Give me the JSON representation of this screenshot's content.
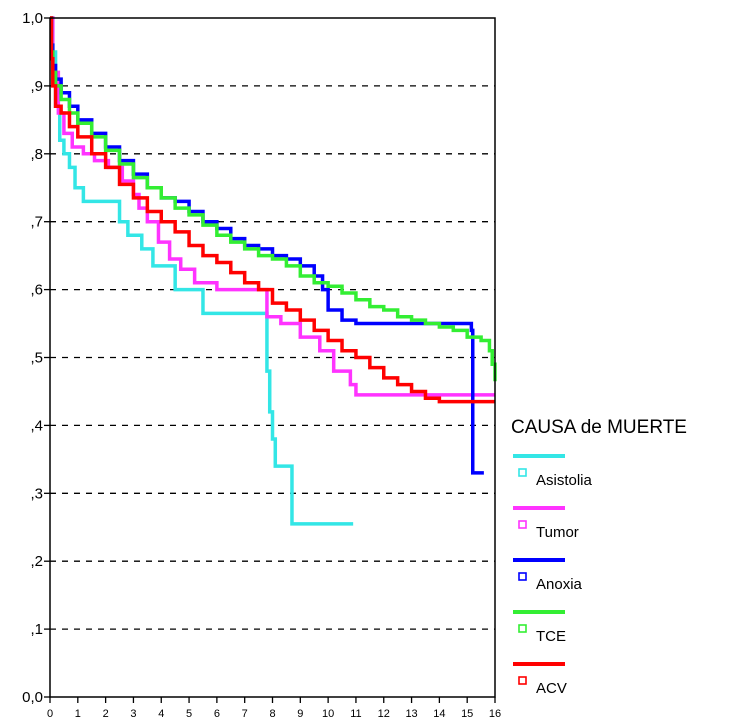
{
  "chart_data": {
    "type": "line",
    "title": "",
    "xlabel": "",
    "ylabel": "",
    "xlim": [
      0,
      16
    ],
    "ylim": [
      0,
      1
    ],
    "x_ticks": [
      "0",
      "1",
      "2",
      "3",
      "4",
      "5",
      "6",
      "7",
      "8",
      "9",
      "10",
      "11",
      "12",
      "13",
      "14",
      "15",
      "16"
    ],
    "y_ticks": [
      "0,0",
      ",1",
      ",2",
      ",3",
      ",4",
      ",5",
      ",6",
      ",7",
      ",8",
      ",9",
      "1,0"
    ],
    "grid": "horizontal dashed",
    "legend": {
      "title": "CAUSA de MUERTE",
      "position": "right",
      "entries": [
        "Asistolia",
        "Tumor",
        "Anoxia",
        "TCE",
        "ACV"
      ]
    },
    "series": [
      {
        "name": "Asistolia",
        "color": "#33e6e6",
        "step": true,
        "x": [
          0,
          0.1,
          0.2,
          0.35,
          0.5,
          0.7,
          0.9,
          1.2,
          2.5,
          2.8,
          3.3,
          3.7,
          4.5,
          5.5,
          7.8,
          7.9,
          8.0,
          8.1,
          8.7,
          10.9
        ],
        "y": [
          1.0,
          0.95,
          0.87,
          0.82,
          0.8,
          0.78,
          0.75,
          0.73,
          0.7,
          0.68,
          0.66,
          0.635,
          0.6,
          0.565,
          0.48,
          0.42,
          0.38,
          0.34,
          0.255,
          0.255
        ]
      },
      {
        "name": "Tumor",
        "color": "#ff33ff",
        "step": true,
        "x": [
          0,
          0.1,
          0.3,
          0.5,
          0.8,
          1.2,
          1.6,
          2.1,
          2.6,
          3.0,
          3.2,
          3.5,
          3.9,
          4.3,
          4.7,
          5.2,
          6.0,
          7.8,
          8.3,
          9.0,
          9.7,
          10.2,
          10.8,
          11.0,
          14.5,
          16.0
        ],
        "y": [
          1.0,
          0.92,
          0.86,
          0.83,
          0.81,
          0.8,
          0.79,
          0.78,
          0.76,
          0.74,
          0.72,
          0.7,
          0.67,
          0.645,
          0.63,
          0.61,
          0.6,
          0.56,
          0.55,
          0.53,
          0.51,
          0.48,
          0.46,
          0.445,
          0.445,
          0.445
        ]
      },
      {
        "name": "Anoxia",
        "color": "#0000ff",
        "step": true,
        "x": [
          0,
          0.05,
          0.1,
          0.2,
          0.4,
          0.7,
          1.0,
          1.5,
          2.0,
          2.5,
          3.0,
          3.5,
          4.0,
          4.5,
          5.0,
          5.5,
          6.0,
          6.5,
          7.0,
          7.5,
          8.0,
          8.5,
          9.0,
          9.5,
          9.8,
          10.0,
          10.5,
          11.0,
          12.0,
          13.0,
          14.0,
          15.0,
          15.15,
          15.2,
          15.6
        ],
        "y": [
          1.0,
          0.96,
          0.93,
          0.91,
          0.89,
          0.87,
          0.85,
          0.83,
          0.81,
          0.79,
          0.77,
          0.75,
          0.735,
          0.73,
          0.715,
          0.7,
          0.69,
          0.675,
          0.665,
          0.66,
          0.65,
          0.645,
          0.635,
          0.62,
          0.6,
          0.57,
          0.555,
          0.55,
          0.55,
          0.55,
          0.55,
          0.55,
          0.54,
          0.33,
          0.33
        ]
      },
      {
        "name": "TCE",
        "color": "#33ee33",
        "step": true,
        "x": [
          0,
          0.05,
          0.1,
          0.2,
          0.4,
          0.7,
          1.0,
          1.5,
          2.0,
          2.5,
          3.0,
          3.5,
          4.0,
          4.5,
          5.0,
          5.5,
          6.0,
          6.5,
          7.0,
          7.5,
          8.0,
          8.5,
          9.0,
          9.5,
          10.0,
          10.5,
          11.0,
          11.5,
          12.0,
          12.5,
          13.0,
          13.5,
          14.0,
          14.5,
          15.0,
          15.5,
          15.8,
          15.9,
          16.0
        ],
        "y": [
          1.0,
          0.95,
          0.92,
          0.9,
          0.88,
          0.86,
          0.845,
          0.825,
          0.805,
          0.785,
          0.765,
          0.75,
          0.735,
          0.72,
          0.71,
          0.695,
          0.68,
          0.67,
          0.66,
          0.65,
          0.645,
          0.635,
          0.62,
          0.61,
          0.605,
          0.595,
          0.585,
          0.575,
          0.57,
          0.56,
          0.555,
          0.55,
          0.545,
          0.54,
          0.53,
          0.525,
          0.51,
          0.49,
          0.465
        ]
      },
      {
        "name": "ACV",
        "color": "#ff0000",
        "step": true,
        "x": [
          0,
          0.05,
          0.1,
          0.2,
          0.4,
          0.7,
          1.0,
          1.5,
          2.0,
          2.5,
          3.0,
          3.5,
          4.0,
          4.5,
          5.0,
          5.5,
          6.0,
          6.5,
          7.0,
          7.5,
          8.0,
          8.5,
          9.0,
          9.5,
          10.0,
          10.5,
          11.0,
          11.5,
          12.0,
          12.5,
          13.0,
          13.5,
          14.0,
          14.5,
          15.0,
          16.0
        ],
        "y": [
          1.0,
          0.94,
          0.9,
          0.87,
          0.86,
          0.84,
          0.825,
          0.8,
          0.78,
          0.755,
          0.735,
          0.715,
          0.7,
          0.685,
          0.665,
          0.65,
          0.64,
          0.625,
          0.61,
          0.6,
          0.58,
          0.57,
          0.555,
          0.54,
          0.525,
          0.51,
          0.5,
          0.485,
          0.47,
          0.46,
          0.45,
          0.44,
          0.435,
          0.435,
          0.435,
          0.435
        ]
      }
    ]
  }
}
